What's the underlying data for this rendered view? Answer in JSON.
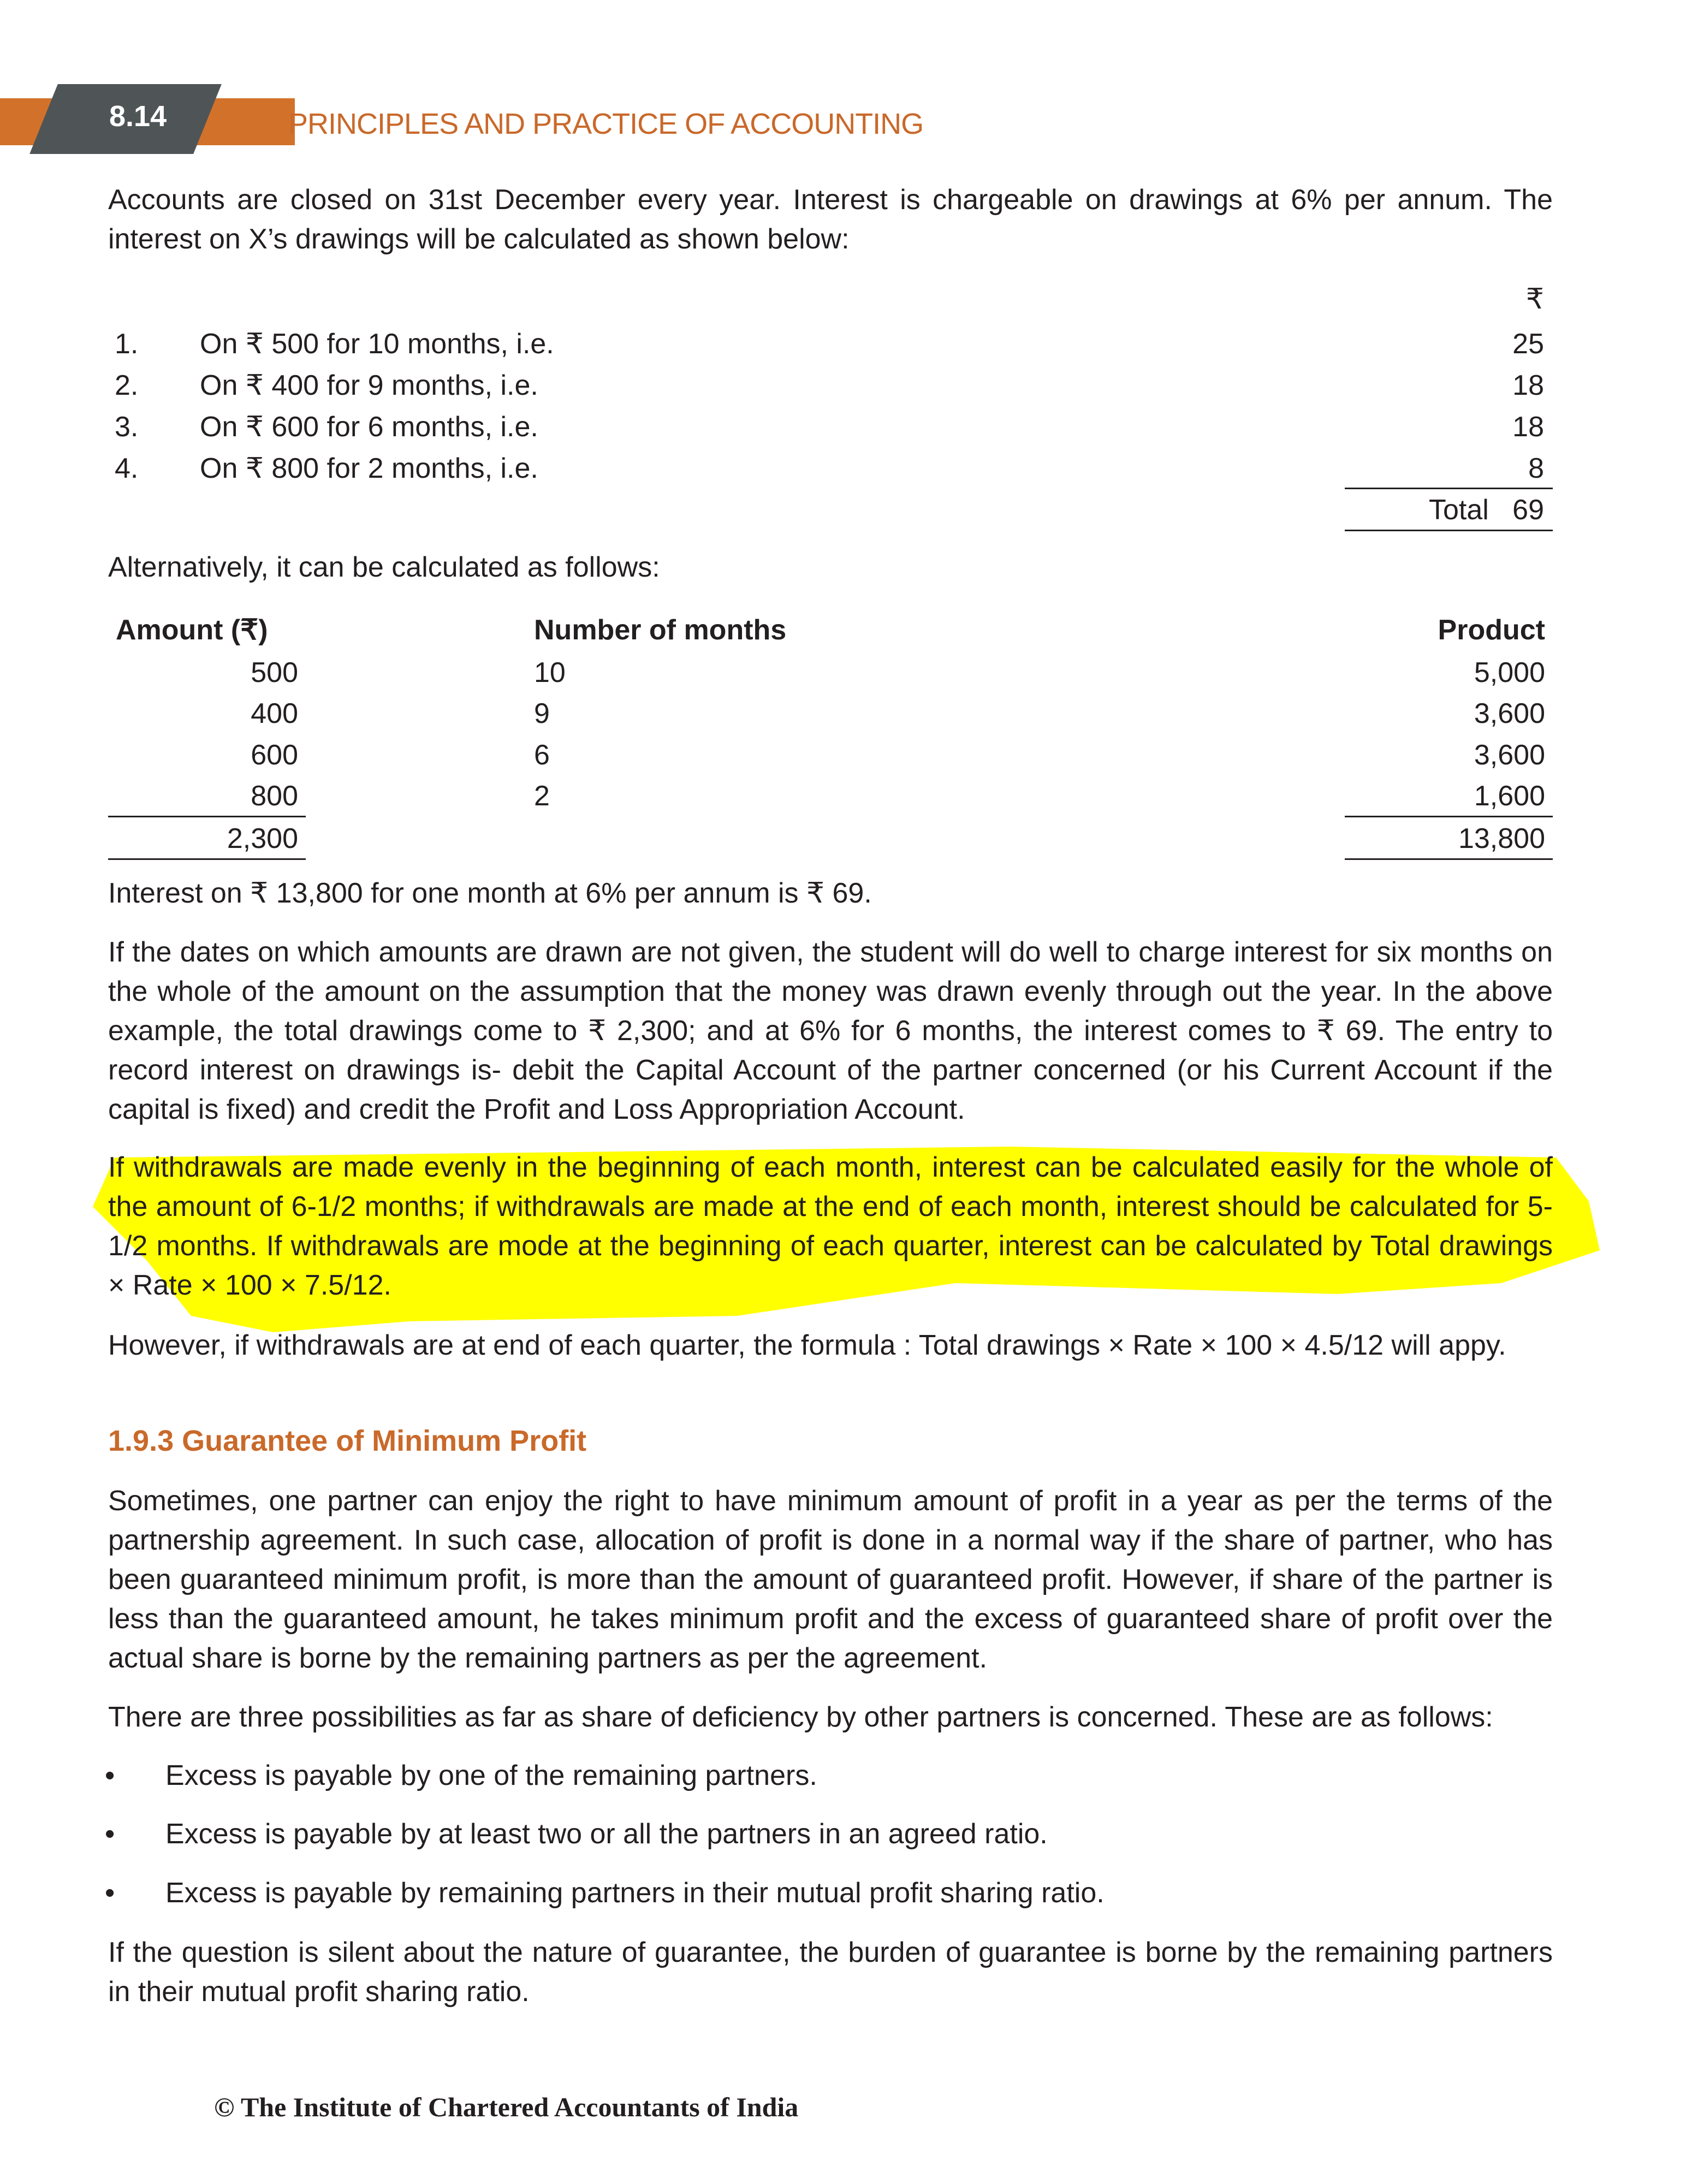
{
  "header": {
    "page_number": "8.14",
    "book_title": "PRINCIPLES AND PRACTICE OF ACCOUNTING",
    "colors": {
      "accent": "#d2722a",
      "tag": "#4f5557",
      "highlight": "#ffff00"
    }
  },
  "intro": "Accounts are closed on 31st December every year. Interest is chargeable on drawings at 6% per annum. The interest on X’s drawings will be calculated as shown below:",
  "list": {
    "currency": "₹",
    "items": [
      {
        "n": "1.",
        "text": "On ₹ 500 for 10 months, i.e.",
        "value": "25"
      },
      {
        "n": "2.",
        "text": "On ₹ 400 for 9 months, i.e.",
        "value": "18"
      },
      {
        "n": "3.",
        "text": "On ₹ 600 for 6 months, i.e.",
        "value": "18"
      },
      {
        "n": "4.",
        "text": "On ₹ 800 for 2 months, i.e.",
        "value": "8"
      }
    ],
    "total_label": "Total",
    "total": "69"
  },
  "alt": "Alternatively, it can be calculated as follows:",
  "table": {
    "headers": [
      "Amount (₹)",
      "Number of months",
      "Product"
    ],
    "rows": [
      [
        "500",
        "10",
        "5,000"
      ],
      [
        "400",
        "9",
        "3,600"
      ],
      [
        "600",
        "6",
        "3,600"
      ],
      [
        "800",
        "2",
        "1,600"
      ]
    ],
    "totals": [
      "2,300",
      "13,800"
    ]
  },
  "interest_line": "Interest on ₹ 13,800 for one month at 6% per annum is ₹ 69.",
  "para1": "If the dates on which amounts are drawn are not given, the student will do well to charge interest for six months on the whole of the amount on the assumption that the money was drawn evenly through out the year. In the above example, the total drawings come to ₹ 2,300; and at 6% for 6 months, the interest comes to ₹ 69. The entry to record interest on drawings is- debit the Capital Account of the partner concerned (or his Current Account if the capital is fixed) and credit the Profit and Loss Appropriation Account.",
  "para_highlighted": "If withdrawals are made evenly in the beginning of each month, interest can be calculated easily for the whole of the amount of 6-1/2 months; if withdrawals are made at the end of each month, interest should be calculated for 5-1/2 months. If withdrawals are mode at the beginning of each quarter, interest can be calculated by Total drawings × Rate × 100 × 7.5/12.",
  "para3": "However, if withdrawals are at end of each quarter, the formula : Total drawings × Rate × 100 × 4.5/12 will appy.",
  "heading": "1.9.3 Guarantee of Minimum Profit",
  "para4": "Sometimes, one partner can enjoy the right to have minimum amount of profit in a year as per the terms of the partnership agreement. In such case, allocation of profit is done in a normal way if the share of partner, who has been guaranteed minimum profit, is more than the amount of guaranteed profit. However, if share of the partner is less than the guaranteed amount, he takes minimum profit and the excess of guaranteed share of profit over the actual share is borne by the remaining partners as per the agreement.",
  "para5": "There are three possibilities as far as share of deficiency by other partners is concerned. These are as follows:",
  "bullets": [
    "Excess is payable by one of the remaining partners.",
    "Excess is payable by at least two or all the partners in an agreed ratio.",
    "Excess is payable by remaining partners in their mutual profit sharing ratio."
  ],
  "para6": "If the question is silent about the nature of guarantee, the burden of guarantee is borne by the remaining partners in their mutual profit sharing ratio.",
  "footer": "© The Institute of Chartered Accountants of India"
}
